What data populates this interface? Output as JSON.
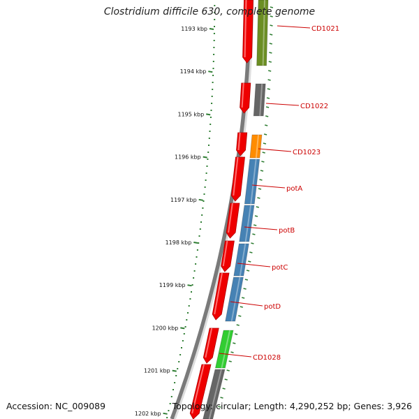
{
  "title": "Clostridium difficile 630, complete genome",
  "footer": {
    "accession": "Accession: NC_009089",
    "summary": "Topology: circular; Length: 4,290,252 bp; Genes: 3,926"
  },
  "colors": {
    "red": "#ee0000",
    "olive": "#6b8e23",
    "gray": "#666666",
    "orange": "#ff8c00",
    "blue": "#4682b4",
    "green": "#32cd32",
    "tick": "#2e7d32",
    "label": "#cc0000"
  },
  "scale": {
    "ticks": [
      {
        "kbp": 1193,
        "label": "1193 kbp"
      },
      {
        "kbp": 1194,
        "label": "1194 kbp"
      },
      {
        "kbp": 1195,
        "label": "1195 kbp"
      },
      {
        "kbp": 1196,
        "label": "1196 kbp"
      },
      {
        "kbp": 1197,
        "label": "1197 kbp"
      },
      {
        "kbp": 1198,
        "label": "1198 kbp"
      },
      {
        "kbp": 1199,
        "label": "1199 kbp"
      },
      {
        "kbp": 1200,
        "label": "1200 kbp"
      },
      {
        "kbp": 1201,
        "label": "1201 kbp"
      },
      {
        "kbp": 1202,
        "label": "1202 kbp"
      }
    ]
  },
  "features": [
    {
      "name": "CD1021",
      "color": "olive"
    },
    {
      "name": "CD1022",
      "color": "gray"
    },
    {
      "name": "CD1023",
      "color": "orange"
    },
    {
      "name": "potA",
      "color": "blue"
    },
    {
      "name": "potB",
      "color": "blue"
    },
    {
      "name": "potC",
      "color": "blue"
    },
    {
      "name": "potD",
      "color": "blue"
    },
    {
      "name": "CD1028",
      "color": "green"
    }
  ]
}
